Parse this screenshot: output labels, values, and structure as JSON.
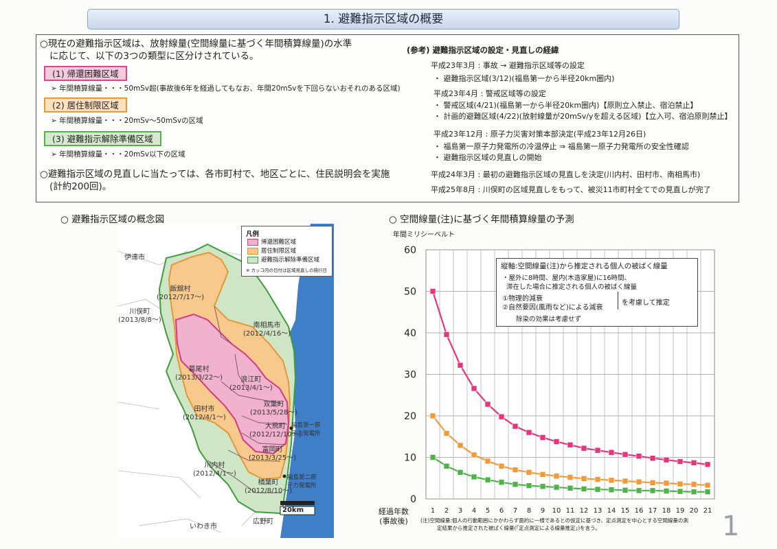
{
  "page": {
    "title": "1. 避難指示区域の概要",
    "page_number": "1"
  },
  "summary": {
    "para1_line1": "○現在の避難指示区域は、放射線量(空間線量に基づく年間積算線量)の水準",
    "para1_line2": "に応じて、以下の3つの類型に区分けされている。",
    "categories": [
      {
        "label": "(1) 帰還困難区域",
        "desc": "➢ 年間積算線量・・・50mSv超(事故後6年を経過してもなお、年間20mSvを下回らないおそれのある区域)",
        "color": "#d9468a"
      },
      {
        "label": "(2) 居住制限区域",
        "desc": "➢ 年間積算線量・・・20mSv〜50mSvの区域",
        "color": "#eb9a33"
      },
      {
        "label": "(3) 避難指示解除準備区域",
        "desc": "➢ 年間積算線量・・・20mSv以下の区域",
        "color": "#56b049"
      }
    ],
    "para2_line1": "○避難指示区域の見直しに当たっては、各市町村で、地区ごとに、住民説明会を実施",
    "para2_line2": "(計約200回)。"
  },
  "reference": {
    "heading": "(参考) 避難指示区域の設定・見直しの経緯",
    "lines": [
      "平成23年3月 : 事故 → 避難指示区域等の設定",
      "・ 避難指示区域(3/12)(福島第一から半径20km圏内)",
      "平成23年4月 : 警戒区域等の設定",
      "・ 警戒区域(4/21)(福島第一から半径20km圏内)【原則立入禁止、宿泊禁止】",
      "・ 計画的避難区域(4/22)(放射線量が20mSv/yを超える区域)【立入可、宿泊原則禁止】",
      "平成23年12月 : 原子力災害対策本部決定(平成23年12月26日)",
      "・ 福島第一原子力発電所の冷温停止 ⇒ 福島第一原子力発電所の安全性確認",
      "・ 避難指示区域の見直しの開始",
      "平成24年3月 : 最初の避難指示区域の見直しを決定(川内村、田村市、南相馬市)",
      "平成25年8月 : 川俣町の区域見直しをもって、被災11市町村全てでの見直しが完了"
    ]
  },
  "map": {
    "heading": "○ 避難指示区域の概念図",
    "legend": {
      "title": "凡例",
      "items": [
        "帰還困難区域",
        "居住制限区域",
        "避難指示解除準備区域"
      ],
      "note": "※ カッコ内の日付は区域見直しの施行日"
    },
    "scale": "20km",
    "labels": [
      {
        "name": "伊達市"
      },
      {
        "name": "飯舘村",
        "date": "(2012/7/17〜)"
      },
      {
        "name": "川俣町",
        "date": "(2013/8/8〜)"
      },
      {
        "name": "南相馬市",
        "date": "(2012/4/16〜)"
      },
      {
        "name": "葛尾村",
        "date": "(2013/3/22〜)"
      },
      {
        "name": "浪江町",
        "date": "(2013/4/1〜)"
      },
      {
        "name": "双葉町",
        "date": "(2013/5/28〜)"
      },
      {
        "name": "田村市",
        "date": "(2012/4/1〜)"
      },
      {
        "name": "大熊町",
        "date": "(2012/12/10〜)"
      },
      {
        "name": "富岡町",
        "date": "(2013/3/25〜)"
      },
      {
        "name": "川内村",
        "date": "(2012/4/1〜)"
      },
      {
        "name": "楢葉町",
        "date": "(2012/8/10〜)"
      },
      {
        "name": "いわき市"
      },
      {
        "name": "広野町"
      },
      {
        "name": "福島第一原子力発電所"
      },
      {
        "name": "福島第二原子力発電所"
      }
    ]
  },
  "chart": {
    "heading": "○ 空間線量(注)に基づく年間積算線量の予測",
    "unit_label": "年間ミリシーベルト",
    "x_label_1": "経過年数",
    "x_label_2": "(事故後)",
    "note_lines": [
      "縦軸:空間線量(注)から推定される個人の被ばく線量",
      "・屋外に8時間、屋内(木造家屋)に16時間、",
      "滞在した場合に推定される個人の被ばく線量",
      "①物理的減衰",
      "②自然要因(風雨など)による減衰",
      "を考慮して推定",
      "除染の効果は考慮せず"
    ],
    "footnote_1": "(注)空間線量:個人の行動範囲にかかわらず面的に一様であるとの仮定に基づき、定点測定を中心とする空間線量の測",
    "footnote_2": "定結果から推定された被ばく線量(「定点測定による線量推定」)を言う。"
  },
  "chart_data": {
    "type": "line",
    "title": "空間線量に基づく年間積算線量の予測",
    "ylabel": "年間ミリシーベルト",
    "xlabel": "経過年数(事故後)",
    "x": [
      1,
      2,
      3,
      4,
      5,
      6,
      7,
      8,
      9,
      10,
      11,
      12,
      13,
      14,
      15,
      16,
      17,
      18,
      19,
      20,
      21
    ],
    "ylim": [
      0,
      60
    ],
    "yticks": [
      0,
      10,
      20,
      30,
      40,
      50,
      60
    ],
    "grid": true,
    "series": [
      {
        "color": "#e5357c",
        "values": [
          50,
          39.6,
          32.2,
          26.6,
          22.8,
          19.8,
          17.5,
          16.0,
          14.8,
          13.8,
          13.0,
          12.2,
          11.7,
          11.2,
          10.7,
          10.3,
          9.8,
          9.4,
          9.0,
          8.7,
          8.3
        ]
      },
      {
        "color": "#f29a3a",
        "values": [
          20,
          15.8,
          12.9,
          10.6,
          9.1,
          7.9,
          7.0,
          6.4,
          5.9,
          5.5,
          5.2,
          4.9,
          4.7,
          4.5,
          4.3,
          4.1,
          3.9,
          3.8,
          3.6,
          3.5,
          3.3
        ]
      },
      {
        "color": "#4db34a",
        "values": [
          10,
          7.9,
          6.4,
          5.3,
          4.6,
          4.0,
          3.5,
          3.2,
          3.0,
          2.8,
          2.6,
          2.4,
          2.3,
          2.2,
          2.1,
          2.0,
          2.0,
          1.9,
          1.8,
          1.7,
          1.7
        ]
      }
    ]
  }
}
